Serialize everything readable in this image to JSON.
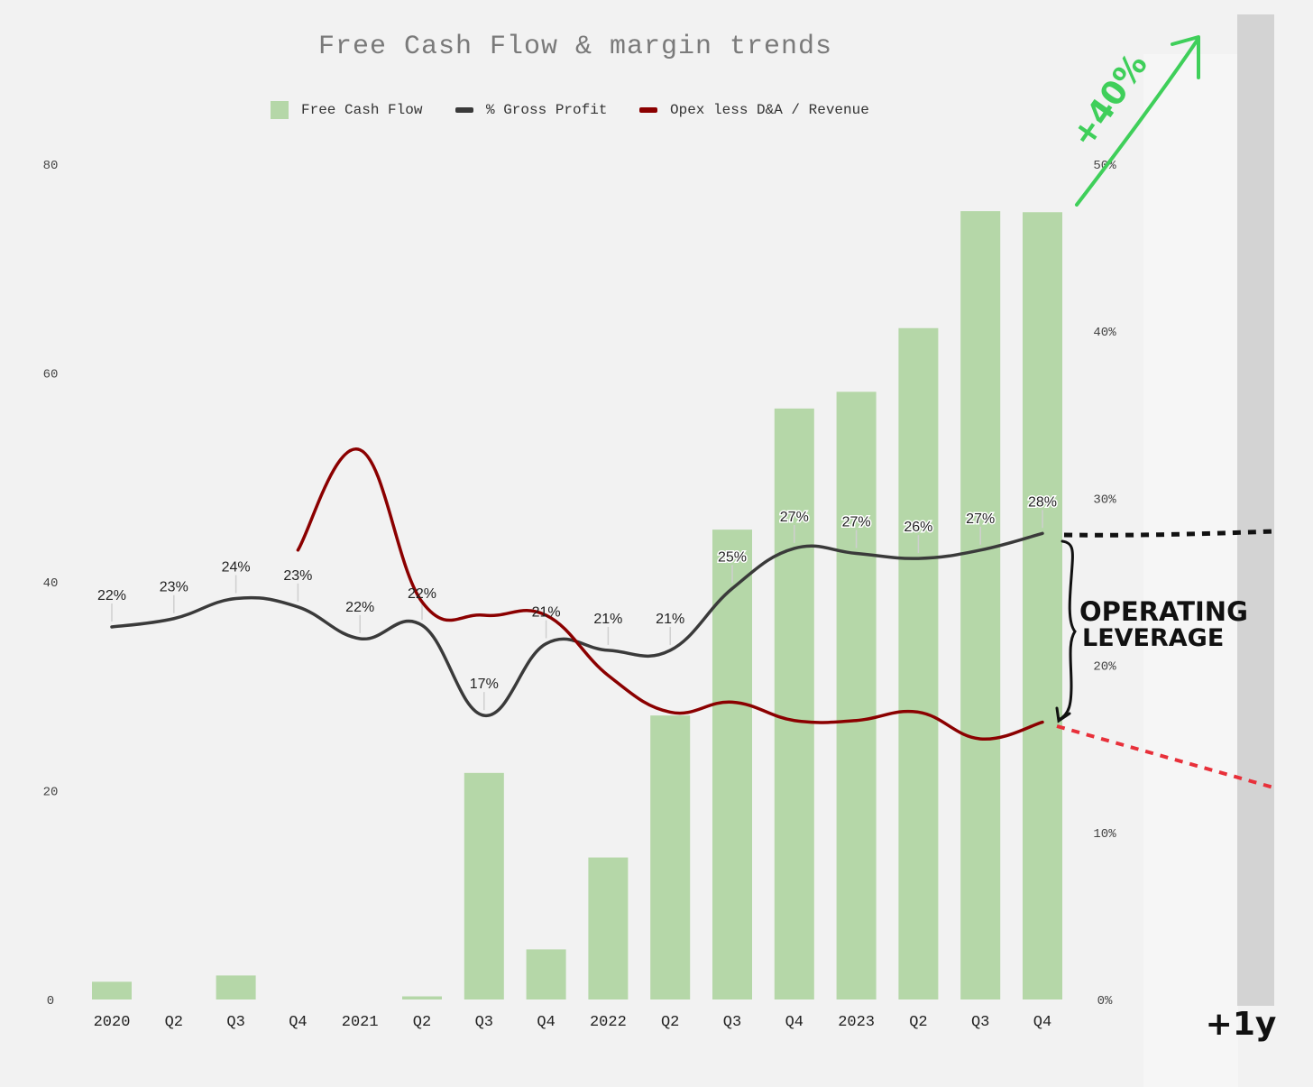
{
  "chart_data": {
    "type": "bar",
    "title": "Free Cash Flow & margin trends",
    "categories": [
      "2020",
      "Q2",
      "Q3",
      "Q4",
      "2021",
      "Q2",
      "Q3",
      "Q4",
      "2022",
      "Q2",
      "Q3",
      "Q4",
      "2023",
      "Q2",
      "Q3",
      "Q4"
    ],
    "y_left": {
      "ticks": [
        0,
        20,
        40,
        60,
        80
      ],
      "ylim": [
        0,
        80
      ]
    },
    "y_right": {
      "ticks": [
        "0%",
        "10%",
        "20%",
        "30%",
        "40%",
        "50%"
      ],
      "ylim": [
        0,
        50
      ]
    },
    "series": [
      {
        "name": "Free Cash Flow",
        "kind": "bar",
        "axis": "left",
        "color": "#b5d7a8",
        "values": [
          1.7,
          0,
          2.3,
          0,
          0,
          0.3,
          21.7,
          4.8,
          13.6,
          27.2,
          45.0,
          56.6,
          58.2,
          64.3,
          75.5,
          75.4
        ]
      },
      {
        "name": "% Gross Profit",
        "kind": "line",
        "axis": "right",
        "color": "#3a3a3a",
        "values": [
          22.3,
          22.8,
          24.0,
          23.5,
          21.6,
          22.4,
          17.0,
          21.3,
          20.9,
          20.9,
          24.6,
          27.0,
          26.7,
          26.4,
          26.9,
          27.9
        ],
        "labels": [
          "22%",
          "23%",
          "24%",
          "23%",
          "22%",
          "22%",
          "17%",
          "21%",
          "21%",
          "21%",
          "25%",
          "27%",
          "27%",
          "26%",
          "27%",
          "28%"
        ]
      },
      {
        "name": "Opex less D&A / Revenue",
        "kind": "line",
        "axis": "right",
        "color": "#8b0000",
        "values": [
          null,
          null,
          null,
          26.9,
          32.9,
          23.8,
          23.0,
          23.0,
          19.4,
          17.2,
          17.8,
          16.7,
          16.7,
          17.2,
          15.6,
          16.6
        ]
      }
    ],
    "legend_position": "top-center",
    "grid": false
  },
  "annotations": {
    "arrow_label": "+40%",
    "bracket_label_line1": "OPERATING",
    "bracket_label_line2": "LEVERAGE",
    "future_label": "+1y",
    "colors": {
      "green": "#3fcf5a",
      "black": "#111111",
      "red": "#e8303a",
      "future_band": "#d3d3d3"
    }
  }
}
